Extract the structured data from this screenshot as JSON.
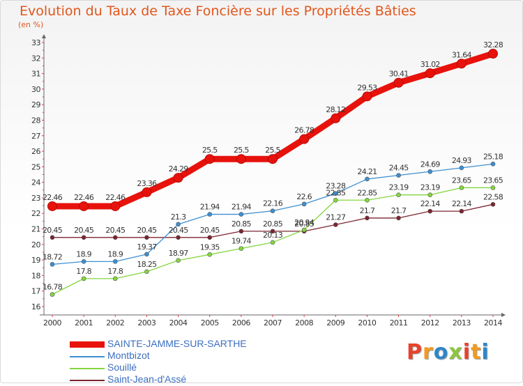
{
  "chart_data": {
    "type": "line",
    "title": "Evolution du Taux de Taxe Foncière sur les Propriétés Bâties",
    "subtitle": "(en %)",
    "x": [
      "2000",
      "2001",
      "2002",
      "2003",
      "2004",
      "2005",
      "2006",
      "2007",
      "2008",
      "2009",
      "2010",
      "2011",
      "2012",
      "2013",
      "2014"
    ],
    "ylim": [
      16,
      33
    ],
    "yticks": [
      "16",
      "17",
      "18",
      "19",
      "20",
      "21",
      "22",
      "23",
      "24",
      "25",
      "26",
      "27",
      "28",
      "29",
      "30",
      "31",
      "32",
      "33"
    ],
    "grid": false,
    "legend_position": "bottom-left",
    "series": [
      {
        "name": "SAINTE-JAMME-SUR-SARTHE",
        "color": "#e8120c",
        "values": [
          22.46,
          22.46,
          22.46,
          23.36,
          24.29,
          25.5,
          25.5,
          25.5,
          26.78,
          28.12,
          29.53,
          30.41,
          31.02,
          31.64,
          32.28
        ],
        "labels": [
          "22.46",
          "22.46",
          "22.46",
          "23.36",
          "24.29",
          "25.5",
          "25.5",
          "25.5",
          "26.78",
          "28.12",
          "29.53",
          "30.41",
          "31.02",
          "31.64",
          "32.28"
        ]
      },
      {
        "name": "Montbizot",
        "color": "#3d8fd1",
        "values": [
          18.72,
          18.9,
          18.9,
          19.37,
          21.3,
          21.94,
          21.94,
          22.16,
          22.6,
          23.28,
          24.21,
          24.45,
          24.69,
          24.93,
          25.18
        ],
        "labels": [
          "18.72",
          "18.9",
          "18.9",
          "19.37",
          "21.3",
          "21.94",
          "21.94",
          "22.16",
          "22.6",
          "23.28",
          "24.21",
          "24.45",
          "24.69",
          "24.93",
          "25.18"
        ]
      },
      {
        "name": "Souillé",
        "color": "#84d63f",
        "values": [
          16.78,
          17.8,
          17.8,
          18.25,
          18.97,
          19.35,
          19.74,
          20.13,
          20.94,
          22.85,
          22.85,
          23.19,
          23.19,
          23.65,
          23.65
        ],
        "labels": [
          "16.78",
          "17.8",
          "17.8",
          "18.25",
          "18.97",
          "19.35",
          "19.74",
          "20.13",
          "20.94",
          "22.85",
          "22.85",
          "23.19",
          "23.19",
          "23.65",
          "23.65"
        ]
      },
      {
        "name": "Saint-Jean-d'Assé",
        "color": "#7b2430",
        "values": [
          20.45,
          20.45,
          20.45,
          20.45,
          20.45,
          20.45,
          20.85,
          20.85,
          20.85,
          21.27,
          21.7,
          21.7,
          22.14,
          22.14,
          22.58
        ],
        "labels": [
          "20.45",
          "20.45",
          "20.45",
          "20.45",
          "20.45",
          "20.45",
          "20.85",
          "20.85",
          "20.85",
          "21.27",
          "21.7",
          "21.7",
          "22.14",
          "22.14",
          "22.58"
        ]
      }
    ]
  },
  "logo": {
    "text": "Proxiti",
    "colors": [
      "#e8422a",
      "#f29a1f",
      "#2f86c8",
      "#8cc63f",
      "#e8422a",
      "#f29a1f",
      "#2f86c8"
    ]
  }
}
